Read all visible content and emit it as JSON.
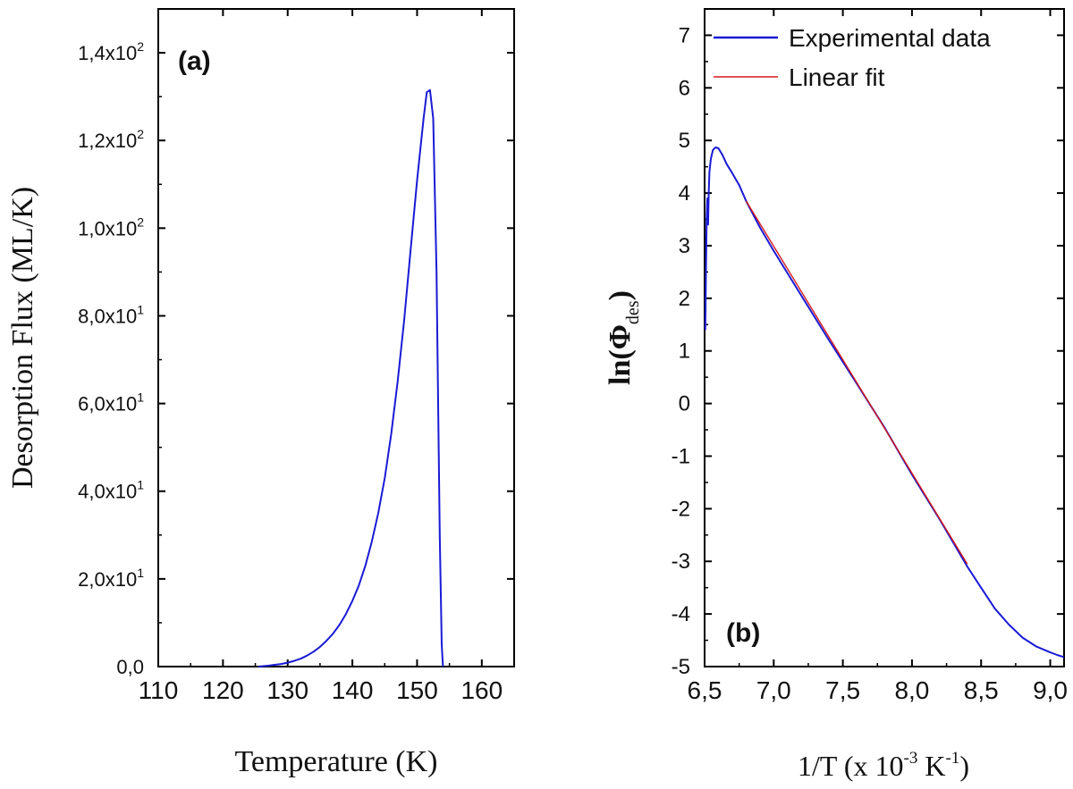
{
  "chart_data": [
    {
      "type": "line",
      "panel_label": "(a)",
      "xlabel": "Temperature (K)",
      "ylabel": "Desorption Flux (ML/K)",
      "xlim": [
        110,
        165
      ],
      "ylim": [
        0,
        150
      ],
      "xticks": [
        110,
        120,
        130,
        140,
        150,
        160
      ],
      "xtick_labels": [
        "110",
        "120",
        "130",
        "140",
        "150",
        "160"
      ],
      "yticks": [
        0,
        20,
        40,
        60,
        80,
        100,
        120,
        140
      ],
      "ytick_labels": [
        {
          "mantissa": "0,0",
          "exp": ""
        },
        {
          "mantissa": "2,0x10",
          "exp": "1"
        },
        {
          "mantissa": "4,0x10",
          "exp": "1"
        },
        {
          "mantissa": "6,0x10",
          "exp": "1"
        },
        {
          "mantissa": "8,0x10",
          "exp": "1"
        },
        {
          "mantissa": "1,0x10",
          "exp": "2"
        },
        {
          "mantissa": "1,2x10",
          "exp": "2"
        },
        {
          "mantissa": "1,4x10",
          "exp": "2"
        }
      ],
      "series": [
        {
          "name": "Desorption flux",
          "color": "#1a1ad6",
          "x": [
            125.5,
            127,
            128,
            129,
            130,
            131,
            132,
            133,
            134,
            135,
            136,
            137,
            138,
            139,
            140,
            141,
            142,
            143,
            144,
            145,
            146,
            147,
            148,
            149,
            150,
            151,
            151.5,
            152,
            152.5,
            153,
            153.5,
            153.8,
            154
          ],
          "y": [
            0,
            0.2,
            0.4,
            0.6,
            0.9,
            1.3,
            1.8,
            2.5,
            3.4,
            4.5,
            5.9,
            7.5,
            9.5,
            12,
            15,
            18.5,
            23,
            28.5,
            35,
            43,
            53,
            65,
            79,
            95,
            111,
            125,
            131,
            131.5,
            125,
            90,
            30,
            5,
            0
          ]
        }
      ]
    },
    {
      "type": "line",
      "panel_label": "(b)",
      "xlabel_parts": {
        "pre": "1/T (x 10",
        "exp1": "-3",
        "mid": " K",
        "exp2": "-1",
        "post": ")"
      },
      "ylabel_parts": {
        "pre": "ln(Φ",
        "sub": "des",
        "post": ")"
      },
      "xlim": [
        6.5,
        9.1
      ],
      "ylim": [
        -5,
        7.5
      ],
      "xticks": [
        6.5,
        7.0,
        7.5,
        8.0,
        8.5,
        9.0
      ],
      "xtick_labels": [
        "6,5",
        "7,0",
        "7,5",
        "8,0",
        "8,5",
        "9,0"
      ],
      "yticks": [
        -5,
        -4,
        -3,
        -2,
        -1,
        0,
        1,
        2,
        3,
        4,
        5,
        6,
        7
      ],
      "ytick_labels": [
        "-5",
        "-4",
        "-3",
        "-2",
        "-1",
        "0",
        "1",
        "2",
        "3",
        "4",
        "5",
        "6",
        "7"
      ],
      "legend_position": "top-left",
      "series": [
        {
          "name": "Experimental data",
          "color": "#1a1ad6",
          "x": [
            6.505,
            6.51,
            6.515,
            6.52,
            6.525,
            6.53,
            6.535,
            6.545,
            6.56,
            6.58,
            6.6,
            6.63,
            6.66,
            6.7,
            6.75,
            6.8,
            6.9,
            7.0,
            7.2,
            7.4,
            7.6,
            7.8,
            8.0,
            8.2,
            8.4,
            8.5,
            8.6,
            8.7,
            8.8,
            8.9,
            9.0,
            9.05,
            9.1
          ],
          "y": [
            1.4,
            2.5,
            3.5,
            3.9,
            3.4,
            4.0,
            4.4,
            4.65,
            4.82,
            4.87,
            4.85,
            4.72,
            4.55,
            4.38,
            4.15,
            3.85,
            3.35,
            2.9,
            2.05,
            1.2,
            0.38,
            -0.45,
            -1.35,
            -2.2,
            -3.1,
            -3.5,
            -3.9,
            -4.2,
            -4.45,
            -4.62,
            -4.73,
            -4.78,
            -4.82
          ]
        },
        {
          "name": "Linear fit",
          "color": "#d61a1a",
          "x": [
            6.8,
            8.4
          ],
          "y": [
            3.85,
            -3.05
          ]
        }
      ]
    }
  ]
}
